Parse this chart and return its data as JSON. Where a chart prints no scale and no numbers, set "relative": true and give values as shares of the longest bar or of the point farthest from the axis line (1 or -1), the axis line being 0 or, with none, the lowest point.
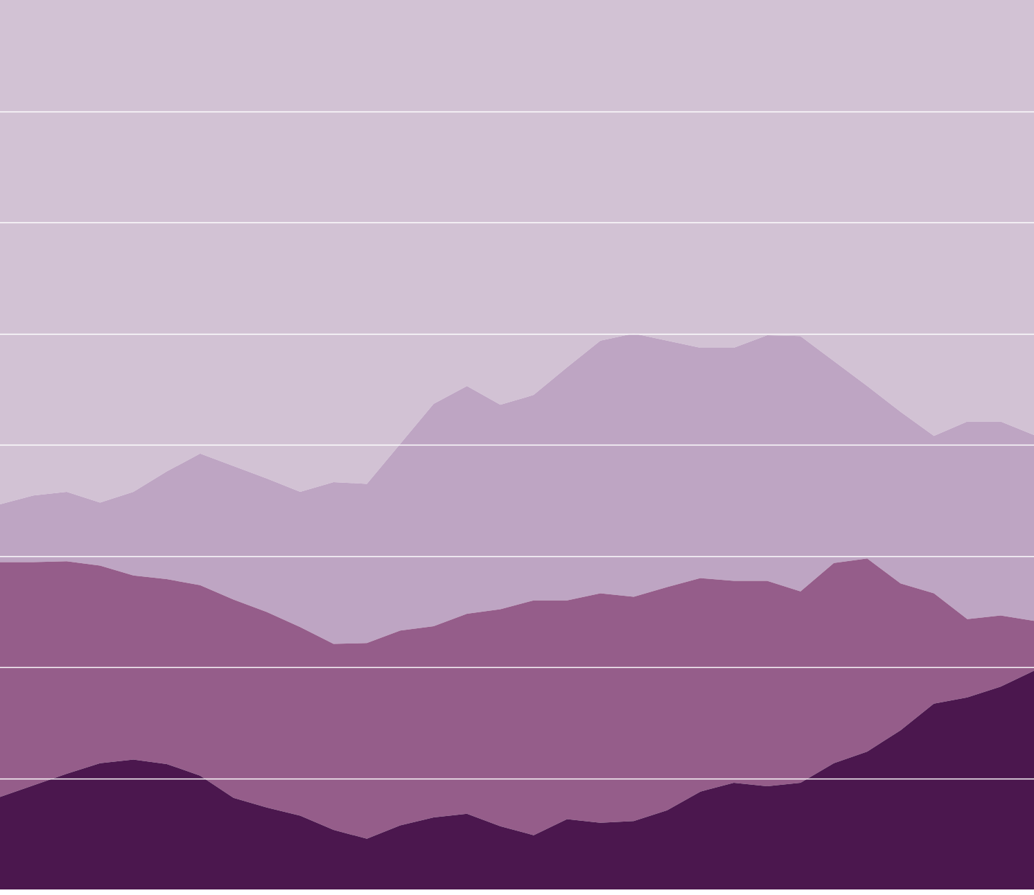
{
  "chart_data": {
    "type": "area",
    "stacked": true,
    "relative": true,
    "grid": "y",
    "legend": false,
    "categories": [
      null,
      null,
      null,
      null,
      null,
      null,
      null,
      null,
      null,
      null,
      null,
      null,
      null,
      null,
      null,
      null,
      null,
      null,
      null,
      null,
      null,
      null,
      null,
      null,
      null,
      null,
      null,
      null,
      null,
      null,
      null,
      null
    ],
    "series": [
      {
        "color": "#4b174e",
        "values": [
          0.104,
          0.117,
          0.13,
          0.142,
          0.146,
          0.141,
          0.128,
          0.103,
          0.092,
          0.083,
          0.067,
          0.057,
          0.072,
          0.081,
          0.085,
          0.071,
          0.061,
          0.079,
          0.075,
          0.077,
          0.089,
          0.11,
          0.12,
          0.116,
          0.12,
          0.142,
          0.155,
          0.179,
          0.209,
          0.216,
          0.228,
          0.246
        ]
      },
      {
        "color": "#955d8a",
        "values": [
          0.264,
          0.251,
          0.239,
          0.222,
          0.207,
          0.208,
          0.214,
          0.223,
          0.22,
          0.212,
          0.209,
          0.22,
          0.219,
          0.215,
          0.225,
          0.244,
          0.264,
          0.246,
          0.258,
          0.252,
          0.251,
          0.24,
          0.227,
          0.231,
          0.215,
          0.225,
          0.217,
          0.165,
          0.124,
          0.088,
          0.08,
          0.056
        ]
      },
      {
        "color": "#bea5c3",
        "values": [
          0.065,
          0.075,
          0.078,
          0.071,
          0.094,
          0.121,
          0.148,
          0.15,
          0.15,
          0.152,
          0.182,
          0.179,
          0.21,
          0.25,
          0.256,
          0.23,
          0.231,
          0.262,
          0.284,
          0.296,
          0.277,
          0.259,
          0.262,
          0.276,
          0.287,
          0.227,
          0.194,
          0.193,
          0.177,
          0.222,
          0.218,
          0.209
        ]
      },
      {
        "color": "#d2c2d4",
        "values": [
          0.567,
          0.557,
          0.553,
          0.565,
          0.553,
          0.53,
          0.51,
          0.524,
          0.538,
          0.553,
          0.542,
          0.544,
          0.499,
          0.454,
          0.434,
          0.455,
          0.444,
          0.413,
          0.383,
          0.375,
          0.383,
          0.391,
          0.391,
          0.377,
          0.378,
          0.406,
          0.434,
          0.463,
          0.49,
          0.474,
          0.474,
          0.489
        ]
      }
    ]
  }
}
